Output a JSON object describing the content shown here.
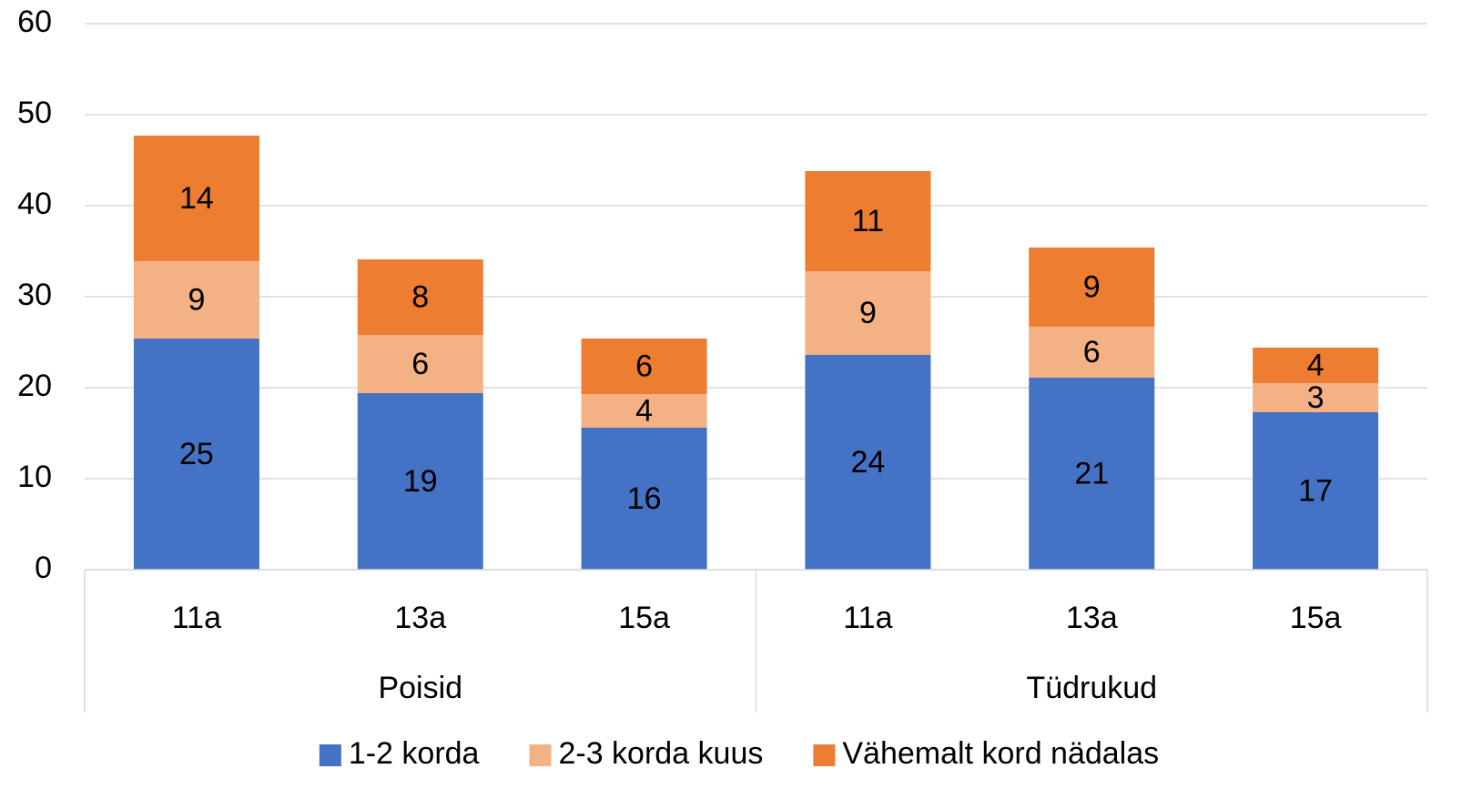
{
  "chart_data": {
    "type": "stacked_bar",
    "categories": [
      "11a",
      "13a",
      "15a",
      "11a",
      "13a",
      "15a"
    ],
    "groups": [
      "Poisid",
      "Tüdrukud"
    ],
    "series": [
      {
        "name": "1-2 korda",
        "color": "#4472c4",
        "values": [
          25.4,
          19.4,
          15.6,
          23.6,
          21.1,
          17.3
        ],
        "value_labels": [
          "25",
          "19",
          "16",
          "24",
          "21",
          "17"
        ]
      },
      {
        "name": "2-3 korda kuus",
        "color": "#f4b183",
        "values": [
          8.5,
          6.4,
          3.7,
          9.2,
          5.6,
          3.2
        ],
        "value_labels": [
          "9",
          "6",
          "4",
          "9",
          "6",
          "3"
        ]
      },
      {
        "name": "Vähemalt kord nädalas",
        "color": "#ed7d31",
        "values": [
          13.8,
          8.3,
          6.1,
          11.0,
          8.7,
          3.9
        ],
        "value_labels": [
          "14",
          "8",
          "6",
          "11",
          "9",
          "4"
        ]
      }
    ],
    "ylim": [
      0,
      60
    ],
    "yticks": [
      0,
      10,
      20,
      30,
      40,
      50,
      60
    ],
    "grid": true,
    "legend": "bottom"
  }
}
